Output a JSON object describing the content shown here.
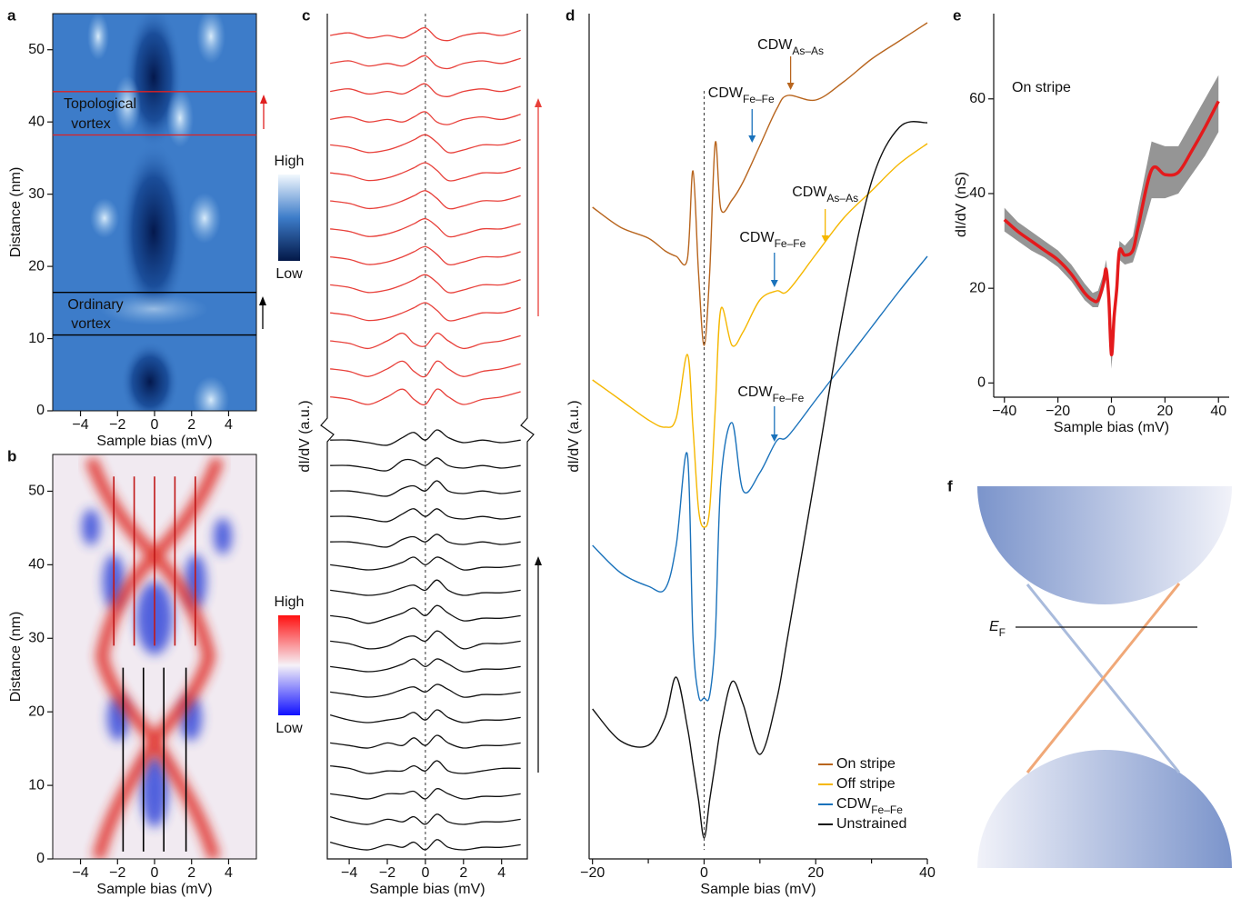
{
  "chart_data": [
    {
      "type": "heatmap",
      "panel_label": "a",
      "xlabel": "Sample bias (mV)",
      "ylabel": "Distance (nm)",
      "xlim": [
        -5.5,
        5.5
      ],
      "xticks": [
        {
          "value": -4,
          "label": "−4"
        },
        {
          "value": -2,
          "label": "−2"
        },
        0,
        2,
        4
      ],
      "ylim": [
        0,
        55
      ],
      "yticks": [
        0,
        10,
        20,
        30,
        40,
        50
      ],
      "colorbar": {
        "high": "High",
        "low": "Low"
      },
      "vortex_lines": [
        {
          "color": "#e02020",
          "y": [
            38.2,
            44.2
          ]
        },
        {
          "color": "#000000",
          "y": [
            10.5,
            16.4
          ]
        }
      ],
      "annotations": [
        {
          "lines": [
            "Topological",
            "vortex"
          ],
          "color": "#e02020"
        },
        {
          "lines": [
            "Ordinary",
            "vortex"
          ],
          "color": "#000000"
        }
      ]
    },
    {
      "type": "heatmap",
      "panel_label": "b",
      "xlabel": "Sample bias (mV)",
      "ylabel": "Distance (nm)",
      "xlim": [
        -5.5,
        5.5
      ],
      "xticks": [
        {
          "value": -4,
          "label": "−4"
        },
        {
          "value": -2,
          "label": "−2"
        },
        0,
        2,
        4
      ],
      "ylim": [
        0,
        55
      ],
      "yticks": [
        0,
        10,
        20,
        30,
        40,
        50
      ],
      "colorbar": {
        "high": "High",
        "low": "Low"
      },
      "lines": [
        {
          "color": "#c01818",
          "x": [
            -2.2,
            -1.1,
            0,
            1.1,
            2.2
          ],
          "y": [
            29,
            52
          ]
        },
        {
          "color": "#000000",
          "x": [
            -1.7,
            -0.6,
            0.5,
            1.7
          ],
          "y": [
            1,
            26
          ]
        }
      ]
    },
    {
      "type": "waterfall",
      "panel_label": "c",
      "xlabel": "Sample bias (mV)",
      "ylabel": "dI/dV (a.u.)",
      "xlim": [
        -5.15,
        5.35
      ],
      "xticks": [
        {
          "value": -4,
          "label": "−4"
        },
        {
          "value": -2,
          "label": "−2"
        },
        0,
        2,
        4
      ],
      "reference_x": 0,
      "x": [
        -5,
        -4,
        -3,
        -2,
        -1.2,
        -0.6,
        0,
        0.6,
        1.2,
        2,
        3,
        4,
        5
      ],
      "groups": [
        {
          "color": "#111111",
          "curves": [
            [
              0.3,
              0.1,
              0,
              0.2,
              0.1,
              0.3,
              0,
              0.4,
              0.1,
              0,
              0.1,
              0.1,
              0.2
            ],
            [
              1.3,
              1.1,
              1,
              1.2,
              1.1,
              1.3,
              1,
              1.4,
              1.1,
              1,
              1.1,
              1.1,
              1.2
            ],
            [
              2.2,
              2.1,
              2,
              2.2,
              2.2,
              2.3,
              2,
              2.4,
              2.2,
              2,
              2.1,
              2.1,
              2.2
            ],
            [
              3.3,
              3.2,
              3,
              3.1,
              3.1,
              3.3,
              3.1,
              3.5,
              3.1,
              3,
              3.1,
              3.2,
              3.2
            ],
            [
              4.2,
              4.1,
              4,
              4.2,
              4.1,
              4.4,
              4.1,
              4.5,
              4.2,
              4,
              4.1,
              4.1,
              4.2
            ],
            [
              5.3,
              5.1,
              5,
              5.1,
              5.2,
              5.4,
              5.1,
              5.5,
              5.2,
              5,
              5.1,
              5.1,
              5.2
            ],
            [
              6.2,
              6.1,
              6,
              6.1,
              6.3,
              6.4,
              6.2,
              6.5,
              6.3,
              6,
              6.1,
              6.1,
              6.2
            ],
            [
              7.2,
              7.1,
              7,
              7.1,
              7.3,
              7.5,
              7.2,
              7.5,
              7.3,
              7,
              7.1,
              7.1,
              7.2
            ],
            [
              8.2,
              8.1,
              7.9,
              8,
              8.3,
              8.4,
              8.2,
              8.6,
              8.3,
              7.9,
              8.1,
              8.1,
              8.2
            ],
            [
              9.2,
              9.1,
              8.9,
              9.1,
              9.3,
              9.5,
              9.2,
              9.6,
              9.3,
              9,
              9.1,
              9.1,
              9.2
            ],
            [
              10.2,
              10.1,
              10,
              10.1,
              10.3,
              10.4,
              10.2,
              10.6,
              10.2,
              10,
              10.1,
              10.1,
              10.2
            ],
            [
              11.2,
              11.1,
              11,
              11.1,
              11.3,
              11.5,
              11.2,
              11.5,
              11.3,
              11,
              11.1,
              11.1,
              11.2
            ],
            [
              12.1,
              12.1,
              12,
              11.9,
              12.2,
              12.3,
              12.1,
              12.4,
              12.1,
              12,
              12.1,
              12,
              12.1
            ],
            [
              13.1,
              13.1,
              13,
              12.9,
              13.2,
              13.4,
              13.1,
              13.4,
              13.1,
              13,
              13.1,
              13,
              13.1
            ],
            [
              14.1,
              14.1,
              14,
              13.9,
              14.2,
              14.3,
              14.1,
              14.5,
              14.1,
              14,
              14.1,
              14,
              14.1
            ],
            [
              15.1,
              15.1,
              15,
              14.9,
              15.3,
              15.3,
              15.1,
              15.4,
              15.1,
              15,
              15.1,
              15,
              15.1
            ],
            [
              16.1,
              16.1,
              16,
              15.9,
              16.2,
              16.4,
              16.1,
              16.5,
              16.2,
              16,
              16.1,
              16,
              16.1
            ]
          ]
        },
        {
          "color": "#e8403a",
          "curves": [
            [
              17.8,
              17.7,
              17.5,
              17.8,
              18.1,
              17.7,
              17.5,
              18.1,
              17.8,
              17.5,
              17.7,
              17.8,
              18
            ],
            [
              18.9,
              18.8,
              18.6,
              18.9,
              19.2,
              18.8,
              18.6,
              19.2,
              18.9,
              18.6,
              18.8,
              18.9,
              19.1
            ],
            [
              20,
              19.9,
              19.7,
              20,
              20.3,
              19.9,
              19.8,
              20.3,
              20,
              19.7,
              19.9,
              20,
              20.2
            ],
            [
              21.1,
              21,
              20.8,
              20.9,
              21.1,
              21.3,
              21.5,
              21.2,
              20.8,
              20.9,
              21.1,
              21.1,
              21.3
            ],
            [
              22.2,
              22.1,
              21.9,
              22,
              22.2,
              22.4,
              22.6,
              22.3,
              21.9,
              22,
              22.2,
              22.2,
              22.4
            ],
            [
              23.3,
              23.2,
              23,
              23.1,
              23.3,
              23.5,
              23.7,
              23.4,
              23,
              23.1,
              23.3,
              23.3,
              23.5
            ],
            [
              24.4,
              24.3,
              24.1,
              24.2,
              24.4,
              24.6,
              24.8,
              24.5,
              24.1,
              24.2,
              24.4,
              24.4,
              24.6
            ],
            [
              25.5,
              25.4,
              25.2,
              25.3,
              25.5,
              25.7,
              25.9,
              25.6,
              25.2,
              25.3,
              25.5,
              25.5,
              25.7
            ],
            [
              26.6,
              26.5,
              26.3,
              26.4,
              26.6,
              26.8,
              27,
              26.7,
              26.3,
              26.4,
              26.6,
              26.6,
              26.8
            ],
            [
              27.7,
              27.6,
              27.4,
              27.5,
              27.7,
              27.9,
              28.1,
              27.8,
              27.4,
              27.5,
              27.7,
              27.7,
              27.9
            ],
            [
              28.7,
              28.8,
              28.6,
              28.7,
              28.6,
              28.8,
              29,
              28.6,
              28.5,
              28.7,
              28.8,
              28.7,
              28.9
            ],
            [
              29.8,
              29.9,
              29.7,
              29.8,
              29.7,
              29.9,
              30.1,
              29.7,
              29.6,
              29.8,
              29.9,
              29.8,
              30
            ],
            [
              30.9,
              31,
              30.8,
              30.9,
              30.8,
              31,
              31.2,
              30.8,
              30.7,
              30.9,
              31,
              30.9,
              31.1
            ],
            [
              32,
              32.1,
              31.9,
              32,
              31.9,
              32.1,
              32.3,
              31.9,
              31.8,
              32,
              32.1,
              32,
              32.2
            ]
          ]
        }
      ]
    },
    {
      "type": "line",
      "panel_label": "d",
      "xlabel": "Sample bias (mV)",
      "ylabel": "dI/dV (a.u.)",
      "xlim": [
        -20.6,
        40
      ],
      "xticks": [
        {
          "value": -20,
          "label": "−20"
        },
        0,
        20,
        40
      ],
      "xminor": [
        -10,
        10,
        30
      ],
      "reference_x": 0,
      "x": [
        -20,
        -15,
        -10,
        -7,
        -5,
        -3,
        -2,
        -1,
        0,
        1,
        2,
        3,
        5,
        7,
        10,
        13,
        15,
        20,
        25,
        30,
        35,
        40
      ],
      "series": [
        {
          "name": "On stripe",
          "color": "#b8651e",
          "values": [
            71.7,
            69.5,
            68.3,
            66.9,
            66.3,
            66,
            75.7,
            64.5,
            56.5,
            64.5,
            78.8,
            71.5,
            72.5,
            74.5,
            78.5,
            82.5,
            84,
            83.5,
            85.5,
            88,
            90,
            92
          ]
        },
        {
          "name": "Off stripe",
          "color": "#f5b700",
          "values": [
            52.7,
            50.5,
            48.3,
            47.5,
            48.5,
            55.5,
            47.5,
            38.5,
            36.5,
            38.5,
            49.5,
            60.5,
            56.5,
            58,
            61.5,
            62.5,
            62.5,
            66.5,
            70.5,
            73.5,
            76.5,
            78.7
          ]
        },
        {
          "name": "CDW",
          "name_sub": "Fe–Fe",
          "color": "#1a72bb",
          "values": [
            34.5,
            31.5,
            30,
            29.7,
            34.5,
            44.5,
            24.5,
            18,
            17.7,
            18,
            24.5,
            41.5,
            48,
            40.5,
            42.5,
            46,
            46.5,
            50.5,
            54.5,
            58.5,
            62.5,
            66.3
          ]
        },
        {
          "name": "Unstrained",
          "color": "#111111",
          "values": [
            16.5,
            13,
            12.5,
            15.5,
            20,
            14.5,
            10.5,
            6.5,
            2.3,
            6.5,
            10.5,
            14.5,
            19.5,
            17,
            11.5,
            17.5,
            24.5,
            42.5,
            60.5,
            74.5,
            80.5,
            81
          ]
        }
      ],
      "annotations": [
        {
          "text": "CDW",
          "sub": "As–As",
          "x": 15.5,
          "arrow_color": "#b8651e"
        },
        {
          "text": "CDW",
          "sub": "Fe–Fe",
          "x": 8.6,
          "arrow_color": "#1a72bb"
        },
        {
          "text": "CDW",
          "sub": "As–As",
          "x": 21.7,
          "arrow_color": "#f5b700"
        },
        {
          "text": "CDW",
          "sub": "Fe–Fe",
          "x": 12.6,
          "arrow_color": "#1a72bb"
        },
        {
          "text": "CDW",
          "sub": "Fe–Fe",
          "x": 12.6,
          "arrow_color": "#1a72bb"
        }
      ]
    },
    {
      "type": "band",
      "panel_label": "e",
      "xlabel": "Sample bias (mV)",
      "ylabel": "dI/dV (nS)",
      "annotation": "On stripe",
      "xlim": [
        -44,
        44
      ],
      "xticks": [
        {
          "value": -40,
          "label": "−40"
        },
        {
          "value": -20,
          "label": "−20"
        },
        0,
        20,
        40
      ],
      "ylim": [
        -3,
        78
      ],
      "yticks": [
        0,
        20,
        40,
        60
      ],
      "color": "#e41a1c",
      "band_color": "#8a8a8a",
      "x": [
        -40,
        -35,
        -30,
        -25,
        -20,
        -15,
        -10,
        -7,
        -5,
        -3,
        -2,
        -1,
        0,
        1,
        2,
        3,
        5,
        8,
        10,
        15,
        20,
        25,
        30,
        35,
        40
      ],
      "values": [
        34.5,
        32,
        30,
        28,
        26,
        23,
        19,
        17.5,
        17.5,
        21,
        24,
        18,
        6,
        14,
        20,
        28,
        27,
        28,
        33,
        45,
        44,
        44.5,
        49,
        54,
        59.5
      ],
      "spread_min": [
        32,
        30,
        28,
        26.5,
        24.5,
        21.5,
        17.5,
        16,
        16,
        19.5,
        22,
        15,
        3,
        11,
        18,
        26,
        25,
        25.5,
        29,
        39,
        39,
        40,
        44,
        48,
        53
      ],
      "spread_max": [
        37,
        34,
        32,
        30,
        28,
        25,
        21,
        19,
        19.5,
        23,
        26,
        21,
        9,
        17,
        22,
        30,
        29,
        31,
        37,
        51,
        50,
        50,
        55,
        60,
        65
      ]
    }
  ],
  "panel_f": {
    "panel_label": "f",
    "ef": {
      "main": "E",
      "sub": "F"
    }
  }
}
